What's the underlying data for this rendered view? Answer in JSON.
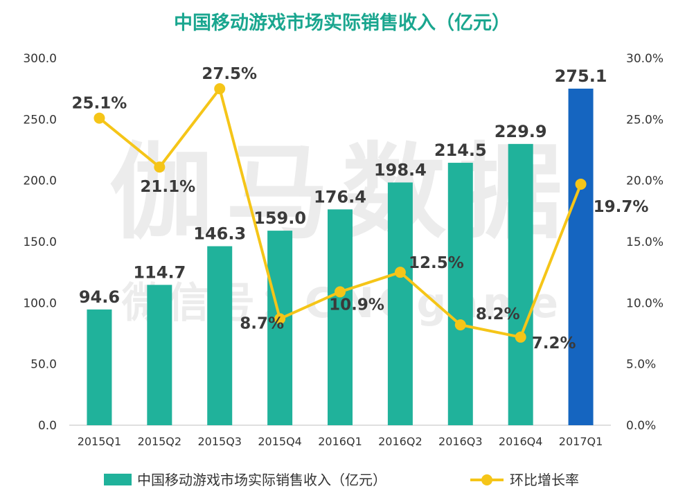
{
  "chart_data": {
    "type": "bar",
    "title": "中国移动游戏市场实际销售收入（亿元）",
    "categories": [
      "2015Q1",
      "2015Q2",
      "2015Q3",
      "2015Q4",
      "2016Q1",
      "2016Q2",
      "2016Q3",
      "2016Q4",
      "2017Q1"
    ],
    "series": [
      {
        "name": "中国移动游戏市场实际销售收入（亿元）",
        "type": "bar",
        "axis": "left",
        "values": [
          94.6,
          114.7,
          146.3,
          159.0,
          176.4,
          198.4,
          214.5,
          229.9,
          275.1
        ],
        "labels": [
          "94.6",
          "114.7",
          "146.3",
          "159.0",
          "176.4",
          "198.4",
          "214.5",
          "229.9",
          "275.1"
        ],
        "color": "#20b29b",
        "highlight_color": "#1565c0",
        "highlight_index": 8
      },
      {
        "name": "环比增长率",
        "type": "line",
        "axis": "right",
        "values": [
          25.1,
          21.1,
          27.5,
          8.7,
          10.9,
          12.5,
          8.2,
          7.2,
          19.7
        ],
        "labels": [
          "25.1%",
          "21.1%",
          "27.5%",
          "8.7%",
          "10.9%",
          "12.5%",
          "8.2%",
          "7.2%",
          "19.7%"
        ],
        "color": "#f5c518"
      }
    ],
    "y_left": {
      "range": [
        0,
        300
      ],
      "ticks": [
        0,
        50,
        100,
        150,
        200,
        250,
        300
      ],
      "tick_labels": [
        "0.0",
        "50.0",
        "100.0",
        "150.0",
        "200.0",
        "250.0",
        "300.0"
      ]
    },
    "y_right": {
      "range": [
        0,
        30
      ],
      "ticks": [
        0,
        5,
        10,
        15,
        20,
        25,
        30
      ],
      "tick_labels": [
        "0.0%",
        "5.0%",
        "10.0%",
        "15.0%",
        "20.0%",
        "25.0%",
        "30.0%"
      ]
    },
    "grid": false,
    "legend": {
      "position": "bottom",
      "entries": [
        "中国移动游戏市场实际销售收入（亿元）",
        "环比增长率"
      ]
    },
    "watermark": {
      "line1": "伽马数据",
      "line2": "微信号：CNGgame"
    }
  }
}
